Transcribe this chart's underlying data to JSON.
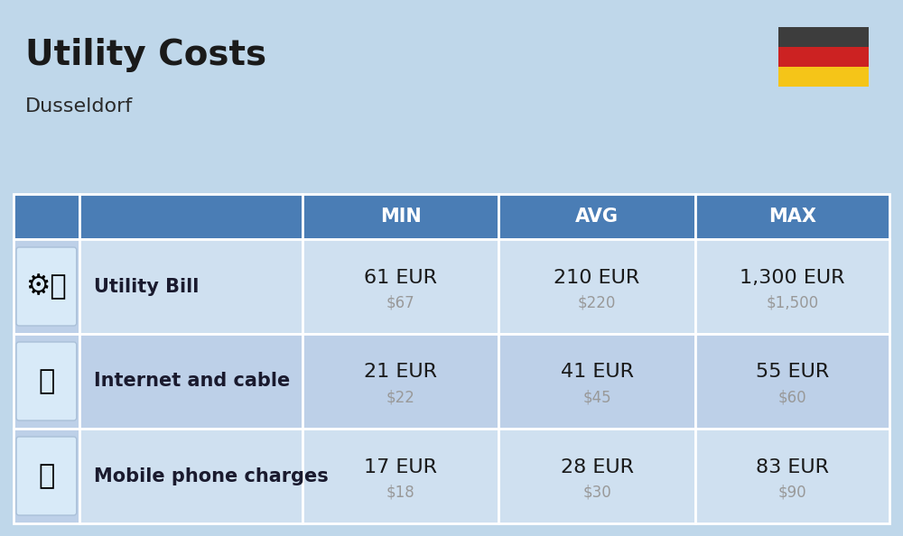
{
  "title": "Utility Costs",
  "subtitle": "Dusseldorf",
  "background_color": "#bfd7ea",
  "header_bg_color": "#4a7db5",
  "header_text_color": "#ffffff",
  "row_bg_color_1": "#cfe0f0",
  "row_bg_color_2": "#bdd0e8",
  "icon_col_bg": "#bdd0e8",
  "cell_border_color": "#ffffff",
  "columns": [
    "MIN",
    "AVG",
    "MAX"
  ],
  "rows": [
    {
      "label": "Utility Bill",
      "min_eur": "61 EUR",
      "min_usd": "$67",
      "avg_eur": "210 EUR",
      "avg_usd": "$220",
      "max_eur": "1,300 EUR",
      "max_usd": "$1,500"
    },
    {
      "label": "Internet and cable",
      "min_eur": "21 EUR",
      "min_usd": "$22",
      "avg_eur": "41 EUR",
      "avg_usd": "$45",
      "max_eur": "55 EUR",
      "max_usd": "$60"
    },
    {
      "label": "Mobile phone charges",
      "min_eur": "17 EUR",
      "min_usd": "$18",
      "avg_eur": "28 EUR",
      "avg_usd": "$30",
      "max_eur": "83 EUR",
      "max_usd": "$90"
    }
  ],
  "flag_colors": [
    "#3d3d3d",
    "#cc2222",
    "#f5c518"
  ],
  "title_fontsize": 28,
  "subtitle_fontsize": 16,
  "eur_fontsize": 16,
  "usd_fontsize": 12,
  "label_fontsize": 15,
  "header_fontsize": 15
}
